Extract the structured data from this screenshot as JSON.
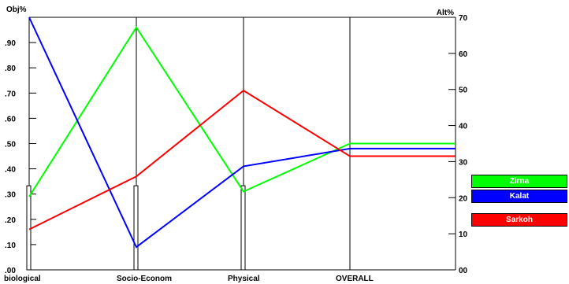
{
  "chart_data": {
    "type": "line",
    "layout": "parallel-coordinates",
    "left_axis_title": "Obj%",
    "right_axis_title": "Alt%",
    "left_ticks": [
      ".00",
      ".10",
      ".20",
      ".30",
      ".40",
      ".50",
      ".60",
      ".70",
      ".80",
      ".90"
    ],
    "right_ticks": [
      "00",
      "10",
      "20",
      "30",
      "40",
      "50",
      "60",
      "70"
    ],
    "left_range": [
      0,
      1
    ],
    "right_range": [
      0,
      70
    ],
    "categories": [
      "biological",
      "Socio-Econom",
      "Physical",
      "OVERALL"
    ],
    "objective_weights": [
      0.333,
      0.333,
      0.333
    ],
    "series": [
      {
        "name": "Zirna",
        "color": "#00ff00",
        "values": [
          0.29,
          0.96,
          0.31,
          0.5
        ],
        "end_value": 0.5
      },
      {
        "name": "Kalat",
        "color": "#0000ff",
        "values": [
          1.0,
          0.09,
          0.41,
          0.48
        ],
        "end_value": 0.48
      },
      {
        "name": "Sarkoh",
        "color": "#ff0000",
        "values": [
          0.16,
          0.37,
          0.71,
          0.45
        ],
        "end_value": 0.45
      }
    ]
  }
}
